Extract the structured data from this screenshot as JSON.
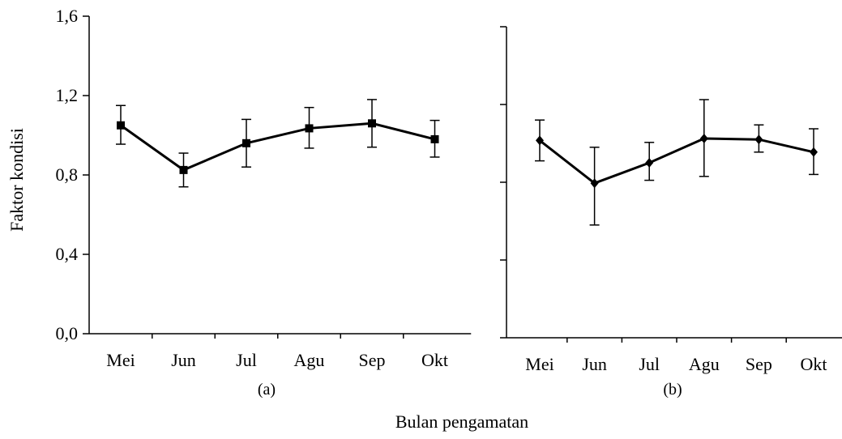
{
  "chart_data": [
    {
      "type": "line",
      "panel_label": "(a)",
      "categories": [
        "Mei",
        "Jun",
        "Jul",
        "Agu",
        "Sep",
        "Okt"
      ],
      "series": [
        {
          "values": [
            1.05,
            0.825,
            0.96,
            1.035,
            1.06,
            0.98
          ],
          "error_low": [
            0.955,
            0.74,
            0.84,
            0.935,
            0.94,
            0.89
          ],
          "error_high": [
            1.15,
            0.91,
            1.08,
            1.14,
            1.18,
            1.075
          ],
          "marker": "square"
        }
      ],
      "ylabel": "Faktor kondisi",
      "ylim": [
        0,
        1.6
      ],
      "yticks": [
        "0,0",
        "0,4",
        "0,8",
        "1,2",
        "1,6"
      ],
      "ytick_values": [
        0,
        0.4,
        0.8,
        1.2,
        1.6
      ],
      "grid": false
    },
    {
      "type": "line",
      "panel_label": "(b)",
      "categories": [
        "Mei",
        "Jun",
        "Jul",
        "Agu",
        "Sep",
        "Okt"
      ],
      "series": [
        {
          "values": [
            1.015,
            0.795,
            0.9,
            1.025,
            1.02,
            0.955
          ],
          "error_low": [
            0.91,
            0.58,
            0.81,
            0.83,
            0.955,
            0.84
          ],
          "error_high": [
            1.12,
            0.98,
            1.005,
            1.225,
            1.095,
            1.075
          ],
          "marker": "diamond"
        }
      ],
      "ylim": [
        0,
        1.6
      ],
      "ytick_values": [
        0,
        0.4,
        0.8,
        1.2,
        1.6
      ],
      "grid": false
    }
  ],
  "xlabel": "Bulan pengamatan"
}
